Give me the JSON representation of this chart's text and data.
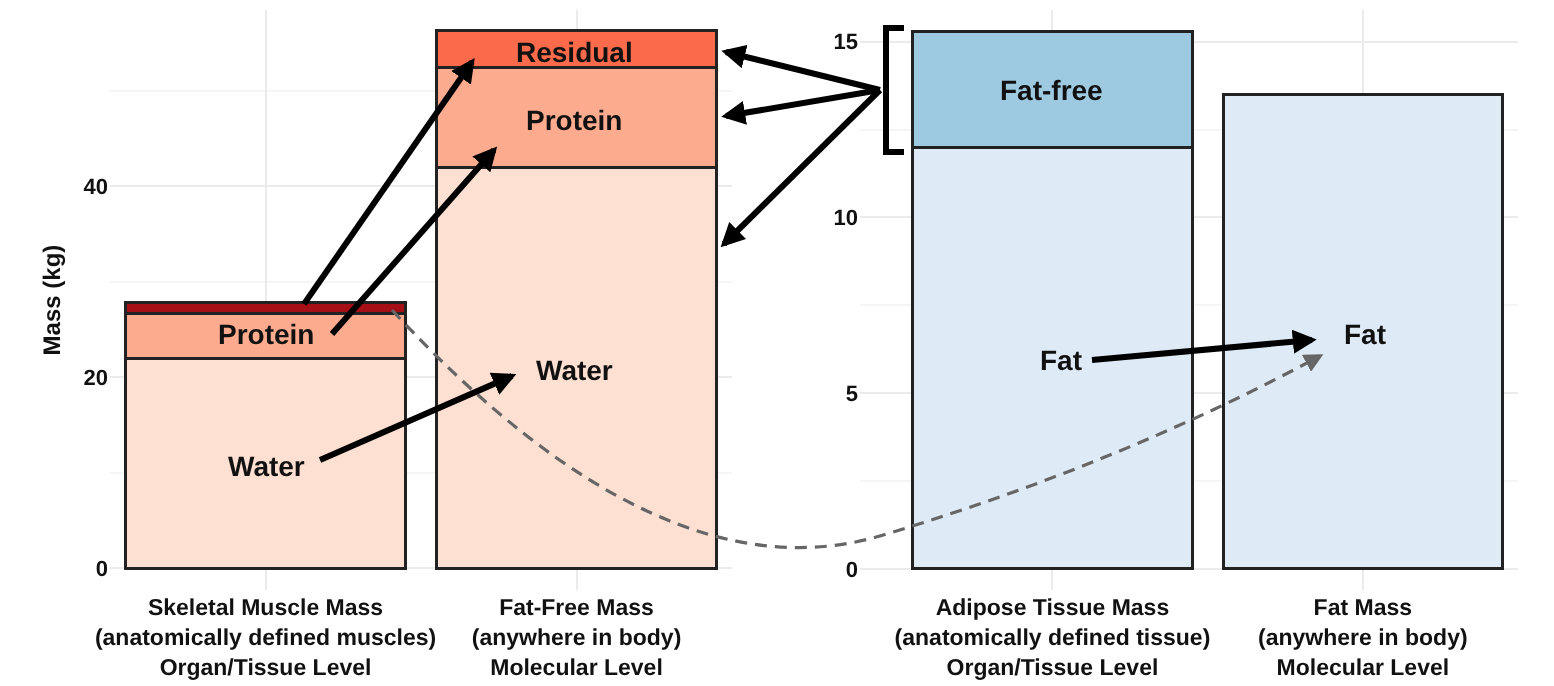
{
  "chart_data": [
    {
      "type": "bar",
      "ylabel": "Mass (kg)",
      "stacked": true,
      "grid": true,
      "categories": [
        "Skeletal Muscle Mass\n(anatomically defined muscles)\nOrgan/Tissue Level",
        "Fat-Free Mass\n(anywhere in body)\nMolecular Level"
      ],
      "series": [
        {
          "colors": [
            "#fde0d2",
            "#fde0d2"
          ],
          "values": [
            22,
            42
          ]
        },
        {
          "colors": [
            "#fcab8f",
            "#fcab8f"
          ],
          "values": [
            4.7,
            10.5
          ]
        },
        {
          "colors": [
            "#a50f15",
            "#fb6a4a"
          ],
          "values": [
            1.1,
            3.8
          ]
        }
      ],
      "ylim": [
        -2.3,
        58.5
      ],
      "yticks": [
        0,
        20,
        40
      ],
      "annotations": [
        "Water",
        "Protein",
        "Water",
        "Protein",
        "Residual"
      ]
    },
    {
      "type": "bar",
      "stacked": true,
      "grid": true,
      "categories": [
        "Adipose Tissue Mass\n(anatomically defined tissue)\nOrgan/Tissue Level",
        "Fat Mass\n(anywhere in body)\nMolecular Level"
      ],
      "series": [
        {
          "colors": [
            "#deebf7",
            "#deebf7"
          ],
          "values": [
            12,
            13.5
          ]
        },
        {
          "colors": [
            "#9ecae1",
            "#9ecae1"
          ],
          "values": [
            3.3,
            null
          ]
        }
      ],
      "ylim": [
        -0.6,
        15.9
      ],
      "yticks": [
        0,
        5,
        10,
        15
      ],
      "annotations": [
        "Fat",
        "Fat-free",
        "Fat"
      ]
    }
  ]
}
